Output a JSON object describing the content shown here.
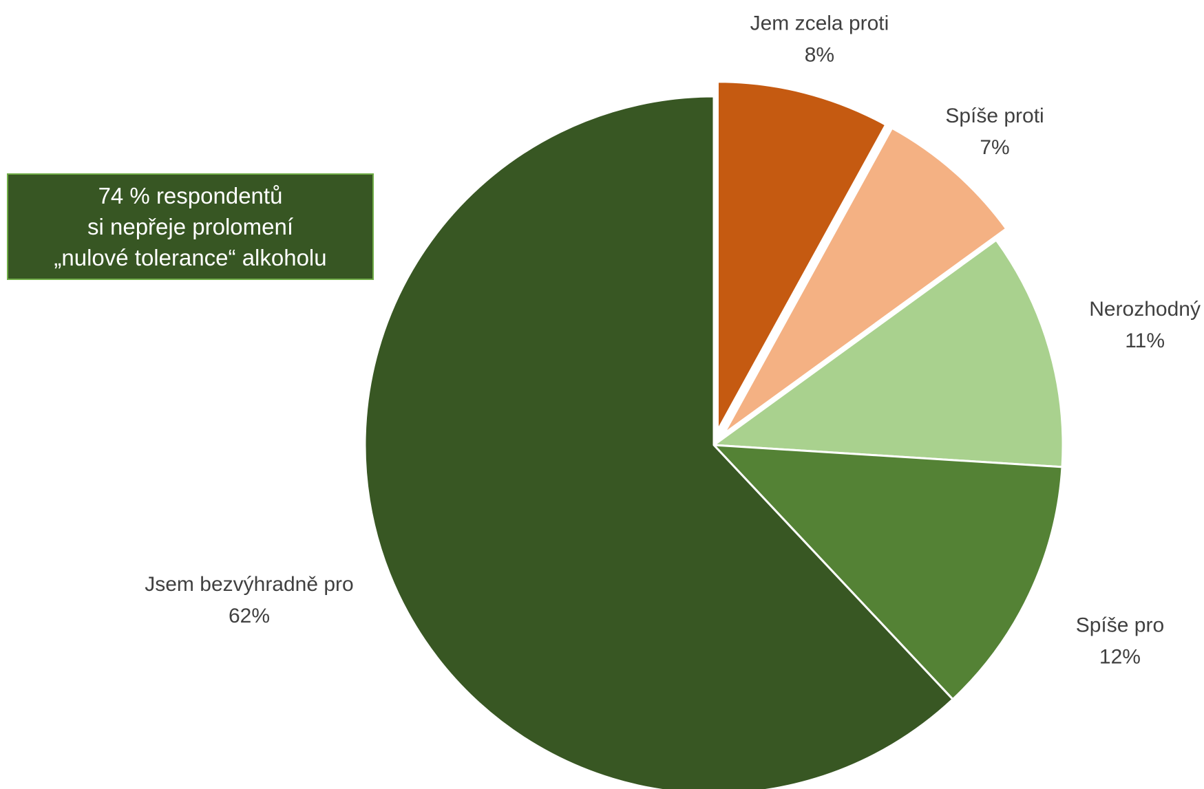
{
  "chart_data": {
    "type": "pie",
    "slices": [
      {
        "label": "Jem zcela proti",
        "value": 8,
        "value_label": "8%",
        "color": "#c55a11",
        "exploded": true
      },
      {
        "label": "Spíše proti",
        "value": 7,
        "value_label": "7%",
        "color": "#f4b183",
        "exploded": true
      },
      {
        "label": "Nerozhodný",
        "value": 11,
        "value_label": "11%",
        "color": "#a9d18e",
        "exploded": false
      },
      {
        "label": "Spíše pro",
        "value": 12,
        "value_label": "12%",
        "color": "#548235",
        "exploded": false
      },
      {
        "label": "Jsem bezvýhradně pro",
        "value": 62,
        "value_label": "62%",
        "color": "#385723",
        "exploded": false
      }
    ],
    "start_angle": "12 o'clock, clockwise",
    "legend": "none",
    "data_labels": "outside, category name and percentage"
  },
  "callout": {
    "lines": [
      "74 % respondentů",
      "si nepřeje prolomení",
      "„nulové tolerance“ alkoholu"
    ],
    "background": "#375623",
    "border": "#70ad47"
  }
}
